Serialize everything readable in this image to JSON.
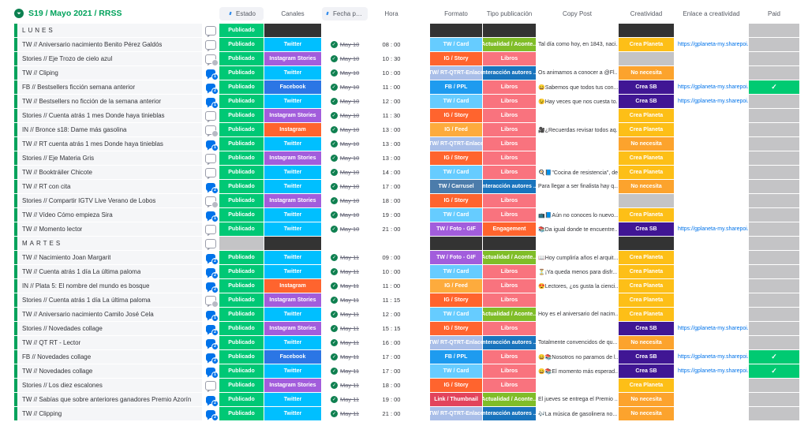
{
  "board": {
    "title": "S19 / Mayo 2021 / RRSS",
    "link_label": "https://gplaneta-my.sharepoi..."
  },
  "columns": {
    "estado": "Estado",
    "canales": "Canales",
    "fecha": "Fecha public...",
    "hora": "Hora",
    "formato": "Formato",
    "tipo": "Tipo publicación",
    "copy": "Copy Post",
    "creatividad": "Creatividad",
    "enlace": "Enlace a creatividad",
    "paid": "Paid"
  },
  "colors": {
    "group_green": "#00a25b",
    "black_cell": "#333333",
    "gray_cell": "#c4c4c6",
    "paid_check": "#00ca72",
    "estado": {
      "Publicado": "#00c875"
    },
    "canales": {
      "Twitter": "#00bfff",
      "Instagram Stories": "#a25ddc",
      "Facebook": "#2b76e5",
      "Instagram": "#ff642e"
    },
    "formato": {
      "TW / Card": "#66ccff",
      "IG / Story": "#ff642e",
      "TW/ RT-QTRT-Enlace": "#a9bee8",
      "FB / PPL": "#1e9bef",
      "IG / Feed": "#fdab3d",
      "TW / Carrusel": "#4c7cab",
      "TW / Foto - GIF": "#a25ddc",
      "Link / Thumbnail": "#e2445c"
    },
    "tipo": {
      "Actualidad / Aconte...": "#80bd28",
      "Libros": "#f9737e",
      "Interacción autores ...": "#1974bd",
      "Engagement": "#ff642e"
    },
    "creatividad": {
      "Crea Planeta": "#fdbf17",
      "No necesita": "#fca32d",
      "Crea SB": "#401694"
    }
  },
  "rows": [
    {
      "group": true,
      "name": "LUNES",
      "battery": "Publicado"
    },
    {
      "name": "TW // Aniversario nacimiento Benito Pérez Galdós",
      "bubble": "none",
      "estado": "Publicado",
      "canal": "Twitter",
      "fecha": "May 10",
      "hora": "08 : 00",
      "formato": "TW / Card",
      "tipo": "Actualidad / Aconte...",
      "copy": "Tal día como hoy, en 1843, naci...",
      "creatividad": "Crea Planeta",
      "enlace": true,
      "paid": false
    },
    {
      "name": "Stories // Eje Trozo de cielo azul",
      "bubble": "gray",
      "estado": "Publicado",
      "canal": "Instagram Stories",
      "fecha": "May 10",
      "hora": "10 : 30",
      "formato": "IG / Story",
      "tipo": "Libros",
      "copy": "",
      "creatividad": "",
      "enlace": false,
      "paid": false
    },
    {
      "name": "TW // Cliping",
      "bubble": "blue:1",
      "estado": "Publicado",
      "canal": "Twitter",
      "fecha": "May 10",
      "hora": "10 : 00",
      "formato": "TW/ RT-QTRT-Enlace",
      "tipo": "Interacción autores ...",
      "copy": "Os animamos a conocer a @Fl...",
      "creatividad": "No necesita",
      "enlace": false,
      "paid": false
    },
    {
      "name": "FB // Bestsellers ficción semana anterior",
      "bubble": "blue:2",
      "estado": "Publicado",
      "canal": "Facebook",
      "fecha": "May 10",
      "hora": "11 : 00",
      "formato": "FB / PPL",
      "tipo": "Libros",
      "copy": "😄Sabemos que todos tus con...",
      "creatividad": "Crea SB",
      "enlace": true,
      "paid": true
    },
    {
      "name": "TW // Bestsellers no ficción de la semana anterior",
      "bubble": "blue:1",
      "estado": "Publicado",
      "canal": "Twitter",
      "fecha": "May 10",
      "hora": "12 : 00",
      "formato": "TW / Card",
      "tipo": "Libros",
      "copy": "😉Hay veces que nos cuesta to...",
      "creatividad": "Crea SB",
      "enlace": true,
      "paid": false
    },
    {
      "name": "Stories // Cuenta atrás 1 mes Donde haya tinieblas",
      "bubble": "none",
      "estado": "Publicado",
      "canal": "Instagram Stories",
      "fecha": "May 10",
      "hora": "11 : 30",
      "formato": "IG / Story",
      "tipo": "Libros",
      "copy": "",
      "creatividad": "Crea Planeta",
      "enlace": false,
      "paid": false
    },
    {
      "name": "IN // Bronce s18: Dame más gasolina",
      "bubble": "gray",
      "estado": "Publicado",
      "canal": "Instagram",
      "fecha": "May 10",
      "hora": "13 : 00",
      "formato": "IG / Feed",
      "tipo": "Libros",
      "copy": "🎥¿Recuerdas revisar todos aq...",
      "creatividad": "Crea Planeta",
      "enlace": false,
      "paid": false
    },
    {
      "name": "TW // RT cuenta atrás 1 mes Donde haya tinieblas",
      "bubble": "blue:1",
      "estado": "Publicado",
      "canal": "Twitter",
      "fecha": "May 10",
      "hora": "13 : 00",
      "formato": "TW/ RT-QTRT-Enlace",
      "tipo": "Libros",
      "copy": "",
      "creatividad": "No necesita",
      "enlace": false,
      "paid": false
    },
    {
      "name": "Stories // Eje Materia Gris",
      "bubble": "none",
      "estado": "Publicado",
      "canal": "Instagram Stories",
      "fecha": "May 10",
      "hora": "13 : 00",
      "formato": "IG / Story",
      "tipo": "Libros",
      "copy": "",
      "creatividad": "Crea Planeta",
      "enlace": false,
      "paid": false
    },
    {
      "name": "TW // Booktráiler Chicote",
      "bubble": "none",
      "estado": "Publicado",
      "canal": "Twitter",
      "fecha": "May 10",
      "hora": "14 : 00",
      "formato": "TW / Card",
      "tipo": "Libros",
      "copy": "🍳📘\"Cocina de resistencia\", de...",
      "creatividad": "Crea Planeta",
      "enlace": false,
      "paid": false
    },
    {
      "name": "TW // RT con cita",
      "bubble": "blue:2",
      "estado": "Publicado",
      "canal": "Twitter",
      "fecha": "May 10",
      "hora": "17 : 00",
      "formato": "TW / Carrusel",
      "tipo": "Interacción autores ...",
      "copy": "Para llegar a ser finalista hay q...",
      "creatividad": "No necesita",
      "enlace": false,
      "paid": false
    },
    {
      "name": "Stories // Compartir IGTV Live Verano de Lobos",
      "bubble": "gray",
      "estado": "Publicado",
      "canal": "Instagram Stories",
      "fecha": "May 10",
      "hora": "18 : 00",
      "formato": "IG / Story",
      "tipo": "Libros",
      "copy": "",
      "creatividad": "",
      "enlace": false,
      "paid": false
    },
    {
      "name": "TW // Vídeo Cómo empieza Sira",
      "bubble": "blue:1",
      "estado": "Publicado",
      "canal": "Twitter",
      "fecha": "May 10",
      "hora": "19 : 00",
      "formato": "TW / Card",
      "tipo": "Libros",
      "copy": "📺📘Aún no conoces lo nuevo...",
      "creatividad": "Crea Planeta",
      "enlace": false,
      "paid": false
    },
    {
      "name": "TW // Momento lector",
      "bubble": "none",
      "estado": "Publicado",
      "canal": "Twitter",
      "fecha": "May 10",
      "hora": "21 : 00",
      "formato": "TW / Foto - GIF",
      "tipo": "Engagement",
      "copy": "📚Da igual donde te encuentre...",
      "creatividad": "Crea SB",
      "enlace": true,
      "paid": false
    },
    {
      "group": true,
      "name": "MARTES",
      "battery": ""
    },
    {
      "name": "TW // Nacimiento Joan Margarit",
      "bubble": "blue:2",
      "estado": "Publicado",
      "canal": "Twitter",
      "fecha": "May 11",
      "hora": "09 : 00",
      "formato": "TW / Foto - GIF",
      "tipo": "Actualidad / Aconte...",
      "copy": "📖Hoy cumpliría años el arquit...",
      "creatividad": "Crea Planeta",
      "enlace": false,
      "paid": false
    },
    {
      "name": "TW // Cuenta atrás 1 día La última paloma",
      "bubble": "blue:2",
      "estado": "Publicado",
      "canal": "Twitter",
      "fecha": "May 11",
      "hora": "10 : 00",
      "formato": "TW / Card",
      "tipo": "Libros",
      "copy": "⏳¡Ya queda menos para disfr...",
      "creatividad": "Crea Planeta",
      "enlace": false,
      "paid": false
    },
    {
      "name": "IN // Plata 5: El nombre del mundo es bosque",
      "bubble": "blue:2",
      "estado": "Publicado",
      "canal": "Instagram",
      "fecha": "May 11",
      "hora": "11 : 00",
      "formato": "IG / Feed",
      "tipo": "Libros",
      "copy": "😍Lectores, ¿os gusta la cienci...",
      "creatividad": "Crea Planeta",
      "enlace": false,
      "paid": false
    },
    {
      "name": "Stories // Cuenta atrás 1 día La última paloma",
      "bubble": "gray",
      "estado": "Publicado",
      "canal": "Instagram Stories",
      "fecha": "May 11",
      "hora": "11 : 15",
      "formato": "IG / Story",
      "tipo": "Libros",
      "copy": "",
      "creatividad": "Crea Planeta",
      "enlace": false,
      "paid": false
    },
    {
      "name": "TW // Aniversario nacimiento Camilo José Cela",
      "bubble": "blue:1",
      "estado": "Publicado",
      "canal": "Twitter",
      "fecha": "May 11",
      "hora": "12 : 00",
      "formato": "TW / Card",
      "tipo": "Actualidad / Aconte...",
      "copy": "Hoy es el aniversario del nacim...",
      "creatividad": "Crea Planeta",
      "enlace": false,
      "paid": false
    },
    {
      "name": "Stories // Novedades collage",
      "bubble": "blue:2",
      "estado": "Publicado",
      "canal": "Instagram Stories",
      "fecha": "May 11",
      "hora": "15 : 15",
      "formato": "IG / Story",
      "tipo": "Libros",
      "copy": "",
      "creatividad": "Crea SB",
      "enlace": true,
      "paid": false
    },
    {
      "name": "TW // QT RT - Lector",
      "bubble": "blue:2",
      "estado": "Publicado",
      "canal": "Twitter",
      "fecha": "May 11",
      "hora": "16 : 00",
      "formato": "TW/ RT-QTRT-Enlace",
      "tipo": "Interacción autores ...",
      "copy": "Totalmente convencidos de qu...",
      "creatividad": "No necesita",
      "enlace": false,
      "paid": false
    },
    {
      "name": "FB // Novedades collage",
      "bubble": "blue:2",
      "estado": "Publicado",
      "canal": "Facebook",
      "fecha": "May 11",
      "hora": "17 : 00",
      "formato": "FB / PPL",
      "tipo": "Libros",
      "copy": "😄📚Nosotros no paramos de l...",
      "creatividad": "Crea SB",
      "enlace": true,
      "paid": true
    },
    {
      "name": "TW // Novedades collage",
      "bubble": "blue:1",
      "estado": "Publicado",
      "canal": "Twitter",
      "fecha": "May 11",
      "hora": "17 : 00",
      "formato": "TW / Card",
      "tipo": "Libros",
      "copy": "😄📚El momento más esperad...",
      "creatividad": "Crea SB",
      "enlace": true,
      "paid": true
    },
    {
      "name": "Stories // Los diez escalones",
      "bubble": "none",
      "estado": "Publicado",
      "canal": "Instagram Stories",
      "fecha": "May 11",
      "hora": "18 : 00",
      "formato": "IG / Story",
      "tipo": "Libros",
      "copy": "",
      "creatividad": "Crea Planeta",
      "enlace": false,
      "paid": false
    },
    {
      "name": "TW // Sabías que sobre anteriores ganadores Premio Azorín",
      "bubble": "blue:2",
      "estado": "Publicado",
      "canal": "Twitter",
      "fecha": "May 11",
      "hora": "19 : 00",
      "formato": "Link / Thumbnail",
      "tipo": "Actualidad / Aconte...",
      "copy": "El jueves se entrega el Premio ...",
      "creatividad": "No necesita",
      "enlace": false,
      "paid": false
    },
    {
      "name": "TW // Clipping",
      "bubble": "blue:2",
      "estado": "Publicado",
      "canal": "Twitter",
      "fecha": "May 11",
      "hora": "21 : 00",
      "formato": "TW/ RT-QTRT-Enlace",
      "tipo": "Interacción autores ...",
      "copy": "🎶La música de gasolinera no...",
      "creatividad": "No necesita",
      "enlace": false,
      "paid": false
    }
  ]
}
